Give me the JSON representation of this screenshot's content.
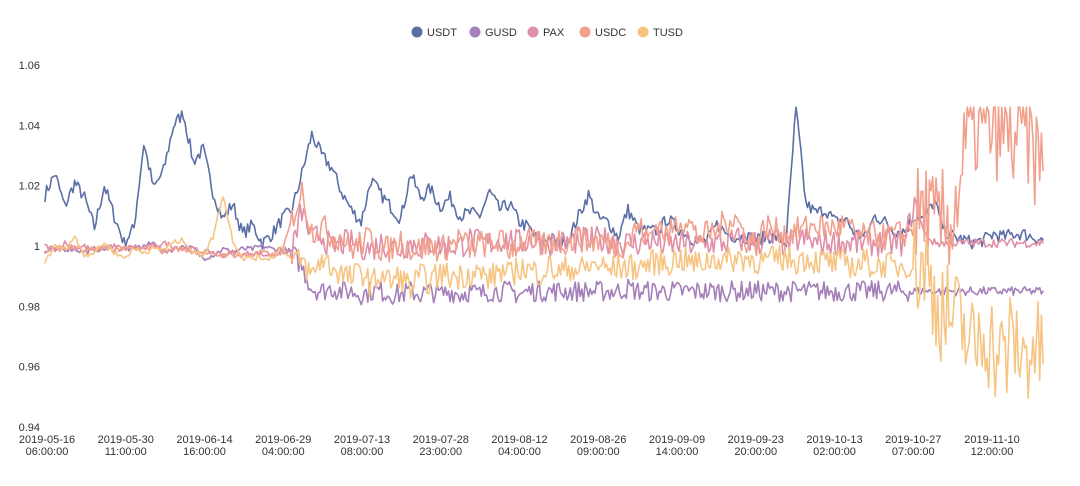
{
  "chart_data": {
    "type": "line",
    "title": "",
    "xlabel": "",
    "ylabel": "",
    "ylim": [
      0.94,
      1.06
    ],
    "y_ticks": [
      "0.94",
      "0.96",
      "0.98",
      "1",
      "1.02",
      "1.04",
      "1.06"
    ],
    "y_tick_values": [
      0.94,
      0.96,
      0.98,
      1.0,
      1.02,
      1.04,
      1.06
    ],
    "x_ticks": [
      {
        "date": "2019-05-16",
        "time": "06:00:00"
      },
      {
        "date": "2019-05-30",
        "time": "11:00:00"
      },
      {
        "date": "2019-06-14",
        "time": "16:00:00"
      },
      {
        "date": "2019-06-29",
        "time": "04:00:00"
      },
      {
        "date": "2019-07-13",
        "time": "08:00:00"
      },
      {
        "date": "2019-07-28",
        "time": "23:00:00"
      },
      {
        "date": "2019-08-12",
        "time": "04:00:00"
      },
      {
        "date": "2019-08-26",
        "time": "09:00:00"
      },
      {
        "date": "2019-09-09",
        "time": "14:00:00"
      },
      {
        "date": "2019-09-23",
        "time": "20:00:00"
      },
      {
        "date": "2019-10-13",
        "time": "02:00:00"
      },
      {
        "date": "2019-10-27",
        "time": "07:00:00"
      },
      {
        "date": "2019-11-10",
        "time": "12:00:00"
      }
    ],
    "grid": false,
    "legend_position": "top-center",
    "series": [
      {
        "name": "USDT",
        "color": "#5b6fa6",
        "values": [
          1.017,
          1.024,
          1.013,
          1.021,
          1.016,
          1.006,
          1.02,
          1.01,
          1.001,
          1.006,
          1.034,
          1.019,
          1.025,
          1.04,
          1.044,
          1.028,
          1.032,
          1.018,
          1.009,
          1.014,
          1.004,
          1.007,
          1.001,
          1.004,
          1.009,
          1.012,
          1.024,
          1.037,
          1.03,
          1.026,
          1.018,
          1.012,
          1.008,
          1.022,
          1.017,
          1.013,
          1.009,
          1.024,
          1.016,
          1.019,
          1.013,
          1.016,
          1.01,
          1.011,
          1.01,
          1.018,
          1.012,
          1.014,
          1.008,
          1.006,
          1.001,
          1.003,
          1.001,
          1.002,
          1.01,
          1.017,
          1.009,
          1.008,
          1.003,
          1.012,
          1.006,
          1.005,
          1.005,
          1.009,
          1.006,
          1.004,
          1.001,
          1.002,
          1.007,
          1.004,
          1.003,
          1.003,
          1.002,
          1.003,
          1.003,
          1.001,
          1.046,
          1.014,
          1.011,
          1.012,
          1.008,
          1.009,
          1.004,
          1.003,
          1.01,
          1.008,
          1.005,
          1.005,
          1.01,
          1.009,
          1.015,
          1.005,
          1.003,
          1.002,
          1.001,
          1.002,
          1.004,
          1.003,
          1.004,
          1.004,
          1.003,
          1.002
        ]
      },
      {
        "name": "GUSD",
        "color": "#a47fb9",
        "values": [
          0.998,
          0.999,
          0.999,
          0.999,
          0.998,
          0.999,
          0.999,
          0.999,
          0.999,
          0.999,
          1.0,
          1.001,
          0.998,
          0.999,
          1.0,
          0.999,
          0.996,
          0.997,
          0.999,
          0.998,
          0.999,
          0.999,
          1.0,
          0.999,
          0.999,
          0.998,
          0.993,
          0.986,
          0.985,
          0.986,
          0.985,
          0.985,
          0.984,
          0.985,
          0.985,
          0.984,
          0.984,
          0.985,
          0.984,
          0.985,
          0.984,
          0.985,
          0.984,
          0.985,
          0.984,
          0.985,
          0.985,
          0.985,
          0.984,
          0.985,
          0.985,
          0.985,
          0.985,
          0.985,
          0.985,
          0.985,
          0.985,
          0.985,
          0.985,
          0.986,
          0.985,
          0.985,
          0.985,
          0.985,
          0.985,
          0.985,
          0.985,
          0.985,
          0.985,
          0.985,
          0.985,
          0.985,
          0.985,
          0.985,
          0.985,
          0.985,
          0.985,
          0.985,
          0.985,
          0.985,
          0.985,
          0.985,
          0.985,
          0.985,
          0.985,
          0.985,
          0.985,
          0.985,
          0.985,
          0.985,
          0.985,
          0.985,
          0.985,
          0.985,
          0.985,
          0.985,
          0.985,
          0.985,
          0.985,
          0.985,
          0.985,
          0.985
        ]
      },
      {
        "name": "PAX",
        "color": "#e08fa6",
        "values": [
          1.0,
          0.999,
          1.001,
          0.999,
          1.0,
          0.998,
          1.0,
          1.0,
          0.999,
          1.0,
          0.999,
          1.0,
          1.001,
          1.0,
          0.999,
          0.999,
          0.998,
          0.998,
          0.997,
          0.998,
          0.997,
          0.998,
          0.997,
          0.997,
          0.998,
          0.998,
          1.012,
          1.002,
          1.004,
          0.999,
          1.001,
          1.001,
          1.0,
          0.999,
          1.001,
          1.0,
          0.999,
          1.001,
          1.0,
          1.001,
          1.0,
          1.0,
          1.0,
          1.002,
          1.001,
          1.001,
          1.002,
          1.002,
          1.001,
          1.002,
          1.002,
          1.001,
          1.001,
          1.001,
          1.002,
          1.002,
          1.002,
          1.002,
          1.001,
          1.001,
          1.001,
          1.002,
          1.001,
          1.0,
          1.001,
          1.001,
          1.0,
          1.001,
          1.001,
          1.001,
          1.002,
          1.002,
          1.001,
          1.002,
          1.002,
          1.0,
          1.002,
          1.002,
          1.001,
          1.001,
          1.001,
          1.001,
          1.001,
          1.001,
          1.001,
          1.001,
          1.001,
          1.001,
          1.015,
          1.004,
          1.001,
          1.001,
          1.001,
          1.001,
          1.001,
          1.001,
          1.001,
          1.001,
          1.001,
          1.001,
          1.001,
          1.001
        ]
      },
      {
        "name": "USDC",
        "color": "#f2a08e",
        "values": [
          0.998,
          0.999,
          0.999,
          1.0,
          0.998,
          0.999,
          0.999,
          0.999,
          0.999,
          0.999,
          0.999,
          1.0,
          0.998,
          0.999,
          0.999,
          0.998,
          0.998,
          0.997,
          0.997,
          0.997,
          0.997,
          0.997,
          0.998,
          0.997,
          0.998,
          1.009,
          1.018,
          1.005,
          1.007,
          1.003,
          1.003,
          0.999,
          1.001,
          1.003,
          0.999,
          0.999,
          1.002,
          0.999,
          0.999,
          1.0,
          0.999,
          1.0,
          1.003,
          0.999,
          1.001,
          1.0,
          1.002,
          0.999,
          1.001,
          1.002,
          1.0,
          1.001,
          1.002,
          1.001,
          1.003,
          1.001,
          1.002,
          1.001,
          1.0,
          1.001,
          1.007,
          1.002,
          1.008,
          1.003,
          1.008,
          1.009,
          1.003,
          1.004,
          1.005,
          1.009,
          1.009,
          1.002,
          1.001,
          1.007,
          1.005,
          1.004,
          1.005,
          1.006,
          1.007,
          1.006,
          1.006,
          1.007,
          1.004,
          1.003,
          1.004,
          1.003,
          1.004,
          1.004,
          1.007,
          1.013,
          1.006,
          1.008,
          1.01,
          1.03,
          1.04,
          1.036,
          1.04,
          1.038,
          1.035,
          1.039,
          1.032,
          1.025
        ]
      },
      {
        "name": "TUSD",
        "color": "#f7c583",
        "values": [
          0.995,
          1.0,
          0.999,
          1.003,
          0.997,
          0.998,
          1.001,
          0.998,
          0.996,
          0.999,
          0.998,
          0.999,
          0.999,
          1.001,
          1.002,
          0.998,
          0.997,
          1.003,
          1.017,
          1.002,
          0.996,
          0.996,
          0.996,
          0.996,
          1.0,
          0.995,
          0.995,
          0.99,
          0.996,
          0.993,
          0.991,
          0.989,
          0.992,
          0.987,
          0.991,
          0.988,
          0.99,
          0.986,
          0.99,
          0.988,
          0.991,
          0.99,
          0.99,
          0.991,
          0.991,
          0.989,
          0.992,
          0.99,
          0.993,
          0.992,
          0.991,
          0.993,
          0.991,
          0.993,
          0.992,
          0.993,
          0.994,
          0.992,
          0.993,
          0.993,
          0.993,
          0.994,
          0.995,
          0.994,
          0.996,
          0.995,
          0.994,
          0.995,
          0.996,
          0.995,
          0.996,
          0.996,
          0.995,
          0.995,
          0.996,
          0.996,
          0.995,
          0.996,
          0.995,
          0.995,
          0.994,
          0.995,
          0.993,
          0.995,
          0.993,
          0.994,
          0.993,
          0.994,
          0.993,
          0.994,
          0.983,
          0.978,
          0.976,
          0.972,
          0.965,
          0.974,
          0.966,
          0.962,
          0.97,
          0.962,
          0.968,
          0.961
        ]
      }
    ]
  }
}
